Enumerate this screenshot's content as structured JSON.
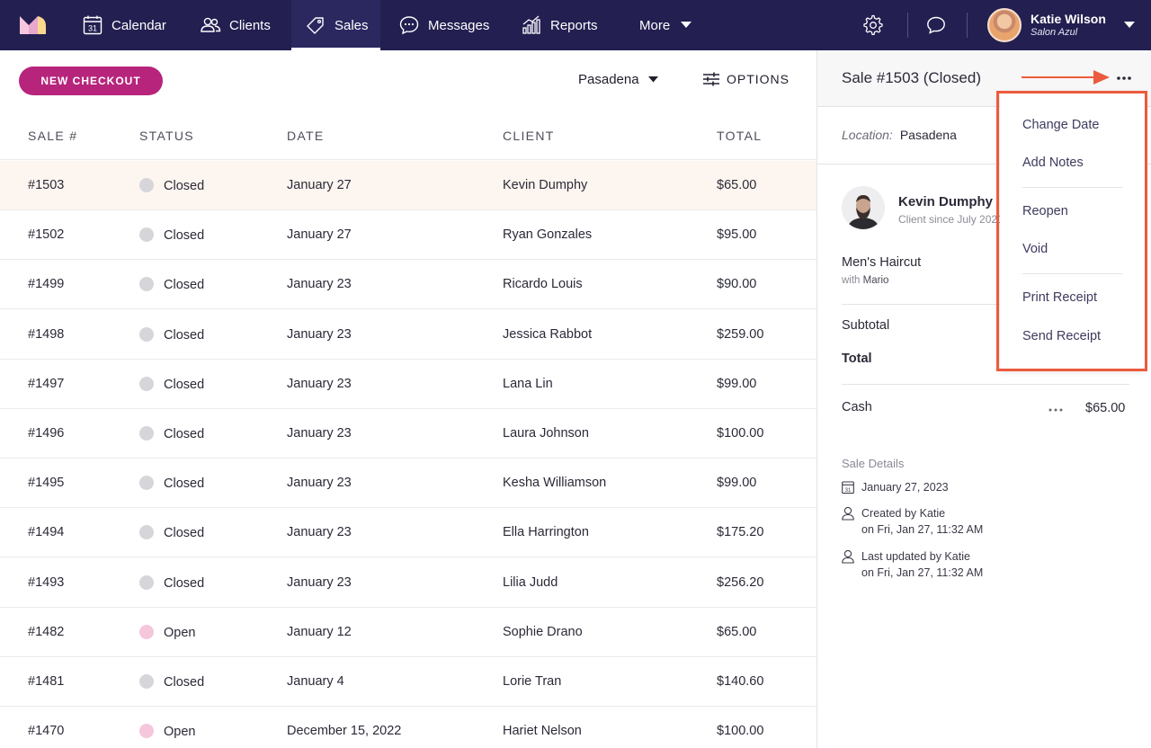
{
  "nav": {
    "items": [
      {
        "label": "Calendar",
        "icon": "calendar-icon"
      },
      {
        "label": "Clients",
        "icon": "clients-icon"
      },
      {
        "label": "Sales",
        "icon": "tag-icon"
      },
      {
        "label": "Messages",
        "icon": "chat-icon"
      },
      {
        "label": "Reports",
        "icon": "reports-icon"
      }
    ],
    "more_label": "More",
    "calendar_day": "31",
    "user": {
      "name": "Katie Wilson",
      "salon": "Salon Azul"
    },
    "active": "Sales",
    "colors": {
      "nav_bg": "#231f51",
      "accent": "#b6247c",
      "highlight": "#ec5b3d"
    }
  },
  "toolbar": {
    "checkout_label": "NEW CHECKOUT",
    "location": "Pasadena",
    "options_label": "OPTIONS"
  },
  "table": {
    "headers": [
      "SALE #",
      "STATUS",
      "DATE",
      "CLIENT",
      "TOTAL"
    ],
    "rows": [
      {
        "sale": "#1503",
        "status": "Closed",
        "date": "January 27",
        "client": "Kevin Dumphy",
        "total": "$65.00"
      },
      {
        "sale": "#1502",
        "status": "Closed",
        "date": "January 27",
        "client": "Ryan Gonzales",
        "total": "$95.00"
      },
      {
        "sale": "#1499",
        "status": "Closed",
        "date": "January 23",
        "client": "Ricardo Louis",
        "total": "$90.00"
      },
      {
        "sale": "#1498",
        "status": "Closed",
        "date": "January 23",
        "client": "Jessica Rabbot",
        "total": "$259.00"
      },
      {
        "sale": "#1497",
        "status": "Closed",
        "date": "January 23",
        "client": "Lana Lin",
        "total": "$99.00"
      },
      {
        "sale": "#1496",
        "status": "Closed",
        "date": "January 23",
        "client": "Laura Johnson",
        "total": "$100.00"
      },
      {
        "sale": "#1495",
        "status": "Closed",
        "date": "January 23",
        "client": "Kesha Williamson",
        "total": "$99.00"
      },
      {
        "sale": "#1494",
        "status": "Closed",
        "date": "January 23",
        "client": "Ella Harrington",
        "total": "$175.20"
      },
      {
        "sale": "#1493",
        "status": "Closed",
        "date": "January 23",
        "client": "Lilia Judd",
        "total": "$256.20"
      },
      {
        "sale": "#1482",
        "status": "Open",
        "date": "January 12",
        "client": "Sophie Drano",
        "total": "$65.00"
      },
      {
        "sale": "#1481",
        "status": "Closed",
        "date": "January 4",
        "client": "Lorie Tran",
        "total": "$140.60"
      },
      {
        "sale": "#1470",
        "status": "Open",
        "date": "December 15, 2022",
        "client": "Hariet Nelson",
        "total": "$100.00"
      }
    ],
    "selected_row": "#1503",
    "status_colors": {
      "Closed": "#d6d6da",
      "Open": "#f6c6dc"
    }
  },
  "panel": {
    "title": "Sale #1503 (Closed)",
    "location_label": "Location:",
    "location": "Pasadena",
    "client_name": "Kevin Dumphy",
    "client_since": "Client since July 2021",
    "service": "Men's Haircut",
    "service_with_prefix": "with",
    "service_staff": "Mario",
    "subtotal_label": "Subtotal",
    "total_label": "Total",
    "payment_method": "Cash",
    "payment_amount": "$65.00",
    "details_title": "Sale Details",
    "detail_date": "January 27, 2023",
    "created_line1": "Created by Katie",
    "created_line2": "on Fri, Jan 27, 11:32 AM",
    "updated_line1": "Last updated by Katie",
    "updated_line2": "on Fri, Jan 27, 11:32 AM"
  },
  "menu": {
    "items": [
      "Change Date",
      "Add Notes",
      "Reopen",
      "Void",
      "Print Receipt",
      "Send Receipt"
    ]
  }
}
